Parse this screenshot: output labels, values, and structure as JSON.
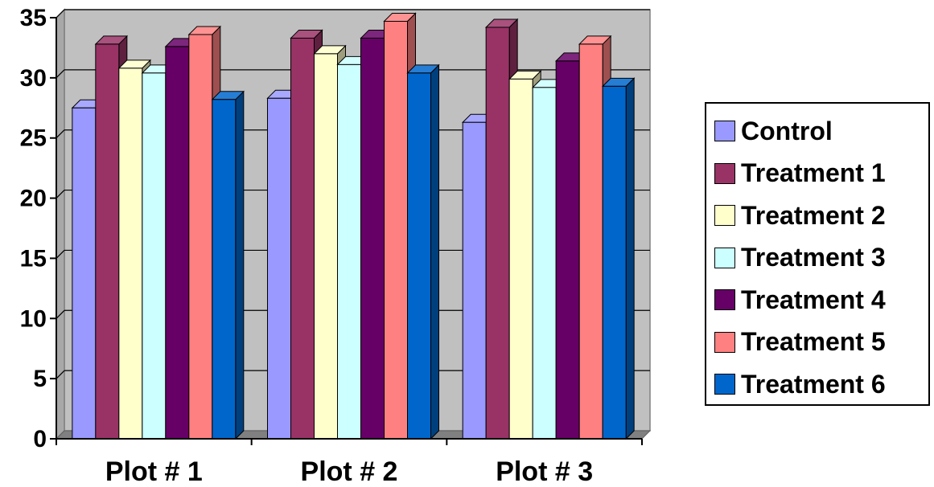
{
  "chart_data": {
    "type": "bar",
    "categories": [
      "Plot # 1",
      "Plot # 2",
      "Plot # 3"
    ],
    "series": [
      {
        "name": "Control",
        "color": "#9999FF",
        "values": [
          27.5,
          28.3,
          26.3
        ]
      },
      {
        "name": "Treatment 1",
        "color": "#993366",
        "values": [
          32.8,
          33.3,
          34.2
        ]
      },
      {
        "name": "Treatment 2",
        "color": "#FFFFCC",
        "values": [
          30.8,
          32.0,
          29.9
        ]
      },
      {
        "name": "Treatment 3",
        "color": "#CCFFFF",
        "values": [
          30.4,
          31.1,
          29.2
        ]
      },
      {
        "name": "Treatment 4",
        "color": "#660066",
        "values": [
          32.6,
          33.3,
          31.4
        ]
      },
      {
        "name": "Treatment 5",
        "color": "#FF8080",
        "values": [
          33.6,
          34.7,
          32.8
        ]
      },
      {
        "name": "Treatment 6",
        "color": "#0066CC",
        "values": [
          28.2,
          30.4,
          29.3
        ]
      }
    ],
    "ylim": [
      0,
      35
    ],
    "yticks": [
      "0",
      "5",
      "10",
      "15",
      "20",
      "25",
      "30",
      "35"
    ],
    "grid": true,
    "legend_position": "right",
    "title": "",
    "xlabel": "",
    "ylabel": "",
    "plot_background": "#C0C0C0",
    "three_d": true
  }
}
